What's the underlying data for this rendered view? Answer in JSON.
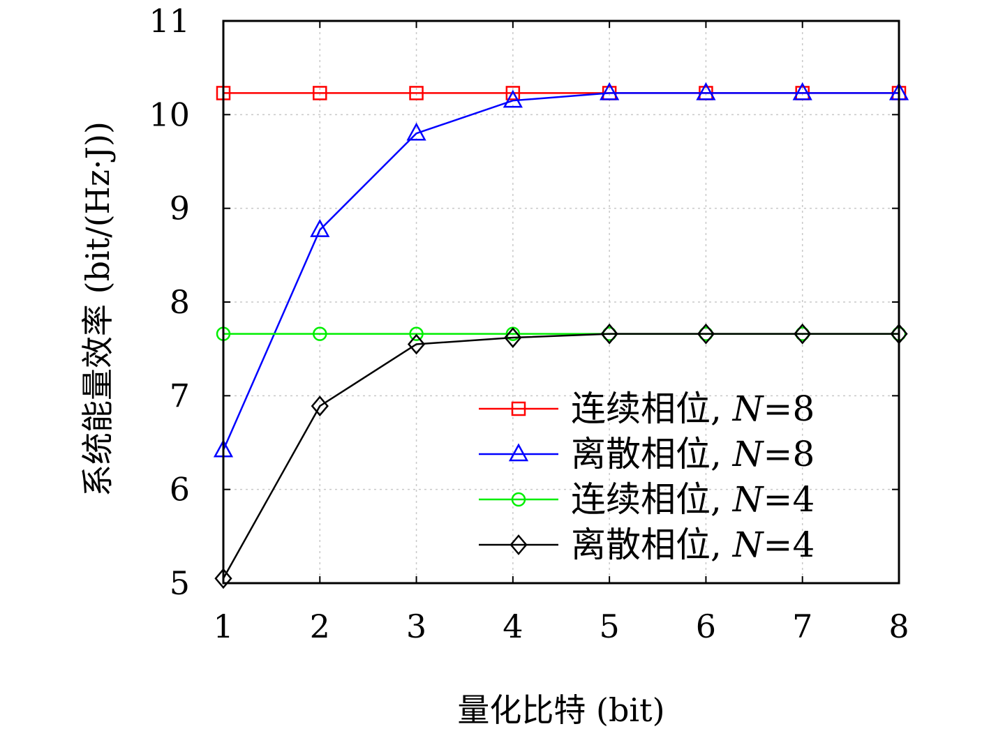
{
  "chart_data": {
    "type": "line",
    "xlabel": "量化比特 (bit)",
    "ylabel": "系统能量效率 (bit/(Hz·J))",
    "x": [
      1,
      2,
      3,
      4,
      5,
      6,
      7,
      8
    ],
    "xlim": [
      1,
      8
    ],
    "ylim": [
      5,
      11
    ],
    "xticks": [
      "1",
      "2",
      "3",
      "4",
      "5",
      "6",
      "7",
      "8"
    ],
    "yticks": [
      "5",
      "6",
      "7",
      "8",
      "9",
      "10",
      "11"
    ],
    "grid": true,
    "legend_position": "bottom-right",
    "series": [
      {
        "name": "连续相位, N=8",
        "name_prefix": "连续相位, ",
        "name_var": "N",
        "name_suffix": "=8",
        "color": "#ff0000",
        "marker": "square",
        "values": [
          10.23,
          10.23,
          10.23,
          10.23,
          10.23,
          10.23,
          10.23,
          10.23
        ]
      },
      {
        "name": "离散相位, N=8",
        "name_prefix": "离散相位, ",
        "name_var": "N",
        "name_suffix": "=8",
        "color": "#0000ff",
        "marker": "triangle",
        "values": [
          6.42,
          8.77,
          9.8,
          10.15,
          10.23,
          10.23,
          10.23,
          10.23
        ]
      },
      {
        "name": "连续相位, N=4",
        "name_prefix": "连续相位, ",
        "name_var": "N",
        "name_suffix": "=4",
        "color": "#00ee00",
        "marker": "circle",
        "values": [
          7.66,
          7.66,
          7.66,
          7.66,
          7.66,
          7.66,
          7.66,
          7.66
        ]
      },
      {
        "name": "离散相位, N=4",
        "name_prefix": "离散相位, ",
        "name_var": "N",
        "name_suffix": "=4",
        "color": "#000000",
        "marker": "diamond",
        "values": [
          5.05,
          6.89,
          7.55,
          7.62,
          7.66,
          7.66,
          7.66,
          7.66
        ]
      }
    ]
  }
}
